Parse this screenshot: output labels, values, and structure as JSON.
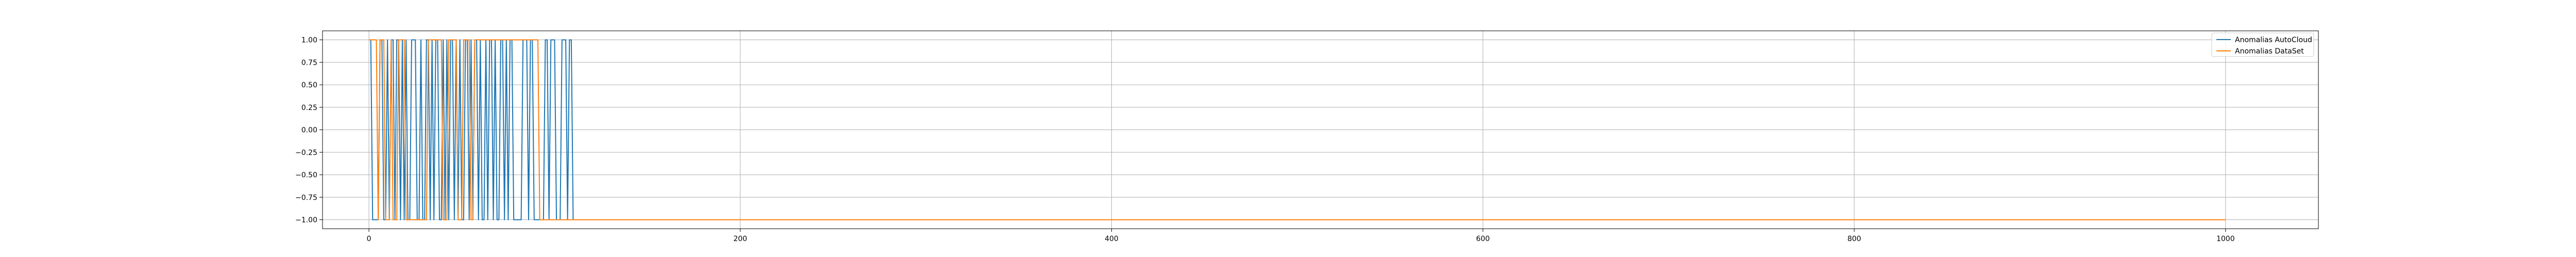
{
  "chart_data": {
    "type": "line",
    "title": "",
    "xlabel": "",
    "ylabel": "",
    "xlim": [
      -25,
      1050
    ],
    "ylim": [
      -1.1,
      1.1
    ],
    "x_ticks": [
      0,
      200,
      400,
      600,
      800,
      1000
    ],
    "x_tick_labels": [
      "0",
      "200",
      "400",
      "600",
      "800",
      "1000"
    ],
    "y_ticks": [
      1.0,
      0.75,
      0.5,
      0.25,
      0.0,
      -0.25,
      -0.5,
      -0.75,
      -1.0
    ],
    "y_tick_labels": [
      "1.00",
      "0.75",
      "0.50",
      "0.25",
      "0.00",
      "−0.25",
      "−0.50",
      "−0.75",
      "−1.00"
    ],
    "grid": true,
    "legend_position": "top-right",
    "series": [
      {
        "name": "Anomalias AutoCloud",
        "color": "#1f77b4",
        "points": [
          [
            0,
            1
          ],
          [
            1,
            1
          ],
          [
            2,
            -1
          ],
          [
            5,
            -1
          ],
          [
            6,
            1
          ],
          [
            7,
            1
          ],
          [
            8,
            -1
          ],
          [
            9,
            -1
          ],
          [
            10,
            1
          ],
          [
            11,
            -1
          ],
          [
            12,
            1
          ],
          [
            13,
            1
          ],
          [
            14,
            -1
          ],
          [
            15,
            1
          ],
          [
            16,
            1
          ],
          [
            17,
            -1
          ],
          [
            18,
            1
          ],
          [
            19,
            -1
          ],
          [
            20,
            1
          ],
          [
            21,
            -1
          ],
          [
            22,
            -1
          ],
          [
            23,
            1
          ],
          [
            24,
            1
          ],
          [
            25,
            1
          ],
          [
            26,
            -1
          ],
          [
            27,
            -1
          ],
          [
            28,
            1
          ],
          [
            29,
            -1
          ],
          [
            30,
            -1
          ],
          [
            31,
            1
          ],
          [
            32,
            1
          ],
          [
            33,
            -1
          ],
          [
            34,
            1
          ],
          [
            35,
            -1
          ],
          [
            36,
            1
          ],
          [
            37,
            1
          ],
          [
            38,
            -1
          ],
          [
            39,
            -1
          ],
          [
            40,
            1
          ],
          [
            41,
            -1
          ],
          [
            42,
            1
          ],
          [
            43,
            -1
          ],
          [
            44,
            1
          ],
          [
            45,
            1
          ],
          [
            46,
            -1
          ],
          [
            47,
            1
          ],
          [
            48,
            -1
          ],
          [
            49,
            1
          ],
          [
            50,
            -1
          ],
          [
            51,
            -1
          ],
          [
            52,
            1
          ],
          [
            53,
            1
          ],
          [
            54,
            -1
          ],
          [
            55,
            1
          ],
          [
            56,
            -1
          ],
          [
            57,
            1
          ],
          [
            58,
            1
          ],
          [
            59,
            -1
          ],
          [
            60,
            1
          ],
          [
            61,
            -1
          ],
          [
            62,
            -1
          ],
          [
            63,
            1
          ],
          [
            64,
            -1
          ],
          [
            65,
            1
          ],
          [
            66,
            1
          ],
          [
            67,
            -1
          ],
          [
            68,
            1
          ],
          [
            69,
            -1
          ],
          [
            70,
            -1
          ],
          [
            71,
            1
          ],
          [
            72,
            1
          ],
          [
            73,
            -1
          ],
          [
            74,
            1
          ],
          [
            75,
            -1
          ],
          [
            76,
            1
          ],
          [
            77,
            1
          ],
          [
            78,
            -1
          ],
          [
            79,
            -1
          ],
          [
            80,
            -1
          ],
          [
            81,
            -1
          ],
          [
            82,
            -1
          ],
          [
            83,
            1
          ],
          [
            84,
            1
          ],
          [
            85,
            1
          ],
          [
            86,
            -1
          ],
          [
            87,
            1
          ],
          [
            88,
            1
          ],
          [
            89,
            -1
          ],
          [
            90,
            -1
          ],
          [
            91,
            -1
          ],
          [
            92,
            -1
          ],
          [
            93,
            -1
          ],
          [
            94,
            -1
          ],
          [
            95,
            1
          ],
          [
            96,
            1
          ],
          [
            97,
            -1
          ],
          [
            98,
            1
          ],
          [
            99,
            1
          ],
          [
            100,
            1
          ],
          [
            101,
            -1
          ],
          [
            102,
            -1
          ],
          [
            103,
            -1
          ],
          [
            104,
            1
          ],
          [
            105,
            1
          ],
          [
            106,
            1
          ],
          [
            107,
            -1
          ],
          [
            108,
            1
          ],
          [
            109,
            1
          ],
          [
            110,
            -1
          ],
          [
            111,
            -1
          ],
          [
            112,
            -1
          ],
          [
            113,
            -1
          ],
          [
            114,
            -1
          ],
          [
            115,
            -1
          ],
          [
            116,
            -1
          ],
          [
            117,
            -1
          ],
          [
            118,
            -1
          ],
          [
            119,
            -1
          ],
          [
            120,
            -1
          ],
          [
            121,
            -1
          ],
          [
            122,
            -1
          ],
          [
            123,
            -1
          ],
          [
            124,
            -1
          ],
          [
            125,
            -1
          ]
        ]
      },
      {
        "name": "Anomalias DataSet",
        "color": "#ff7f0e",
        "points": [
          [
            0,
            1
          ],
          [
            4,
            1
          ],
          [
            5,
            -1
          ],
          [
            6,
            1
          ],
          [
            8,
            1
          ],
          [
            9,
            -1
          ],
          [
            11,
            -1
          ],
          [
            12,
            1
          ],
          [
            13,
            -1
          ],
          [
            15,
            -1
          ],
          [
            16,
            1
          ],
          [
            19,
            1
          ],
          [
            20,
            -1
          ],
          [
            31,
            -1
          ],
          [
            32,
            1
          ],
          [
            39,
            1
          ],
          [
            40,
            -1
          ],
          [
            42,
            -1
          ],
          [
            43,
            1
          ],
          [
            47,
            1
          ],
          [
            48,
            -1
          ],
          [
            50,
            -1
          ],
          [
            51,
            1
          ],
          [
            54,
            1
          ],
          [
            55,
            -1
          ],
          [
            56,
            -1
          ],
          [
            57,
            1
          ],
          [
            91,
            1
          ],
          [
            92,
            -1
          ],
          [
            1000,
            -1
          ]
        ]
      }
    ]
  }
}
